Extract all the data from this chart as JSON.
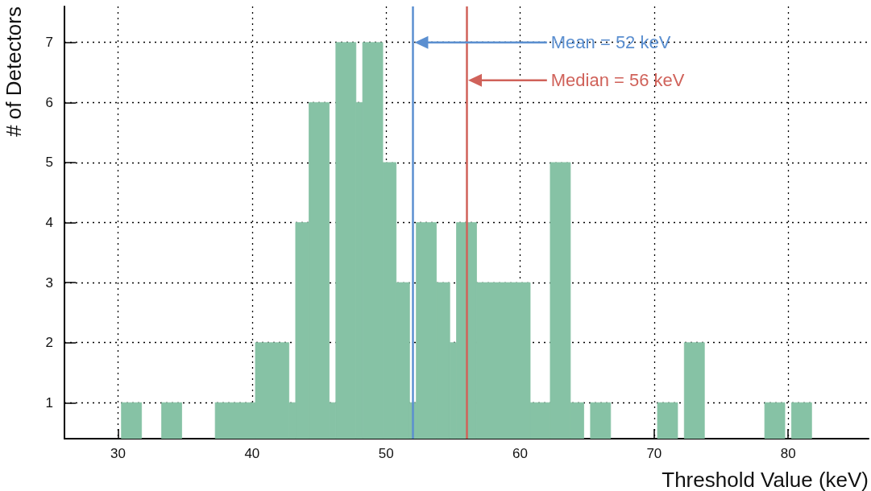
{
  "chart_data": {
    "type": "histogram",
    "xlabel": "Threshold Value (keV)",
    "ylabel": "# of Detectors",
    "color": "#86c2a5",
    "bins": [
      30.25,
      31.75,
      33.25,
      34.75,
      37.25,
      40.25,
      42.75,
      43.25,
      44.25,
      45.75,
      46.25,
      47.75,
      48.25,
      49.75,
      50.75,
      51.75,
      52.25,
      53.75,
      54.75,
      55.25,
      56.75,
      60.75,
      62.25,
      63.75,
      64.75,
      65.25,
      66.75,
      70.25,
      71.75,
      72.25,
      73.75,
      78.25,
      79.75,
      80.25,
      81.75
    ],
    "values": [
      1,
      null,
      1,
      null,
      1,
      2,
      1,
      4,
      6,
      1,
      7,
      6,
      7,
      5,
      3,
      1,
      4,
      3,
      2,
      4,
      3,
      1,
      5,
      1,
      null,
      1,
      null,
      1,
      null,
      2,
      null,
      1,
      null,
      1
    ],
    "xlim": [
      26,
      86
    ],
    "xticks": [
      30,
      40,
      50,
      60,
      70,
      80
    ],
    "ylim": [
      0.4,
      7.6
    ],
    "yticks": [
      1,
      2,
      3,
      4,
      5,
      6,
      7
    ],
    "grid": true,
    "ref_lines": [
      {
        "axis": "x",
        "value": 52,
        "label": "Mean = 52 keV",
        "color": "#5b8fd0"
      },
      {
        "axis": "x",
        "value": 56,
        "label": "Median = 56 keV",
        "color": "#d0625a"
      }
    ]
  }
}
